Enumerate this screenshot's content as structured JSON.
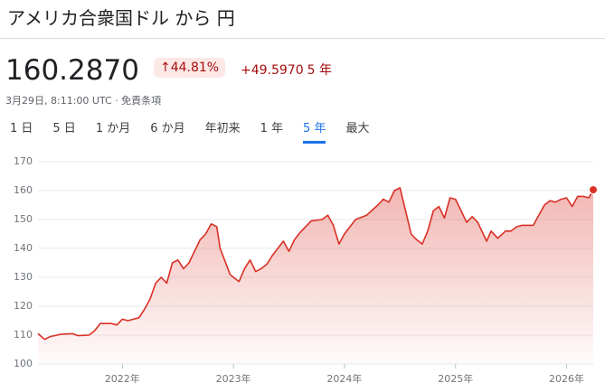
{
  "header": {
    "title": "アメリカ合衆国ドル から 円",
    "price": "160.2870",
    "change_percent": "↑44.81%",
    "change": "+49.5970",
    "period": "5 年",
    "timestamp": "3月29日, 8:11:00 UTC · 免責条項"
  },
  "tabs": {
    "items": [
      "1 日",
      "5 日",
      "1 か月",
      "6 か月",
      "年初来",
      "1 年",
      "5 年",
      "最大"
    ],
    "selected": 6
  },
  "chart_data": {
    "type": "area",
    "color": "#d93025",
    "grid": true,
    "x": [
      2021.24,
      2021.3,
      2021.35,
      2021.45,
      2021.55,
      2021.6,
      2021.7,
      2021.75,
      2021.8,
      2021.9,
      2021.95,
      2022.0,
      2022.05,
      2022.1,
      2022.15,
      2022.2,
      2022.25,
      2022.3,
      2022.35,
      2022.4,
      2022.45,
      2022.5,
      2022.55,
      2022.6,
      2022.65,
      2022.7,
      2022.75,
      2022.8,
      2022.85,
      2022.88,
      2022.92,
      2022.97,
      2023.0,
      2023.05,
      2023.1,
      2023.15,
      2023.2,
      2023.25,
      2023.3,
      2023.35,
      2023.4,
      2023.45,
      2023.5,
      2023.55,
      2023.6,
      2023.7,
      2023.8,
      2023.85,
      2023.9,
      2023.95,
      2024.0,
      2024.1,
      2024.2,
      2024.3,
      2024.35,
      2024.4,
      2024.45,
      2024.5,
      2024.55,
      2024.6,
      2024.65,
      2024.7,
      2024.75,
      2024.8,
      2024.85,
      2024.9,
      2024.95,
      2025.0,
      2025.05,
      2025.1,
      2025.15,
      2025.2,
      2025.28,
      2025.32,
      2025.38,
      2025.45,
      2025.5,
      2025.55,
      2025.6,
      2025.7,
      2025.75,
      2025.8,
      2025.85,
      2025.9,
      2025.95,
      2026.0,
      2026.05,
      2026.1,
      2026.15,
      2026.2,
      2026.24
    ],
    "values": [
      110.5,
      108.5,
      109.5,
      110.3,
      110.5,
      109.8,
      110.0,
      111.5,
      114,
      114,
      113.5,
      115.5,
      115,
      115.5,
      116,
      119,
      122.5,
      128,
      130,
      128,
      135,
      136,
      133,
      135,
      139,
      143,
      145,
      148.5,
      147.5,
      140,
      136,
      131,
      130,
      128.5,
      133,
      136,
      132,
      133,
      134.5,
      137.5,
      140,
      142.5,
      139,
      143,
      145.5,
      149.5,
      150,
      151.5,
      148,
      141.5,
      145,
      150,
      151.5,
      155,
      157,
      156,
      160,
      161,
      153,
      145,
      143,
      141.5,
      146,
      153,
      154.5,
      150.5,
      157.5,
      157,
      153,
      149,
      151,
      149,
      142.5,
      146,
      143.5,
      146,
      146,
      147.5,
      148,
      148,
      151.5,
      155,
      156.5,
      156,
      157,
      157.5,
      154.5,
      158,
      158,
      157.5,
      160.287
    ],
    "xlim": [
      2021.24,
      2026.24
    ],
    "ylim": [
      100,
      170
    ],
    "yticks": [
      100,
      110,
      120,
      130,
      140,
      150,
      160,
      170
    ],
    "xticks": [
      {
        "value": 2022,
        "label": "2022年"
      },
      {
        "value": 2023,
        "label": "2023年"
      },
      {
        "value": 2024,
        "label": "2024年"
      },
      {
        "value": 2025,
        "label": "2025年"
      },
      {
        "value": 2026,
        "label": "2026年"
      }
    ]
  }
}
